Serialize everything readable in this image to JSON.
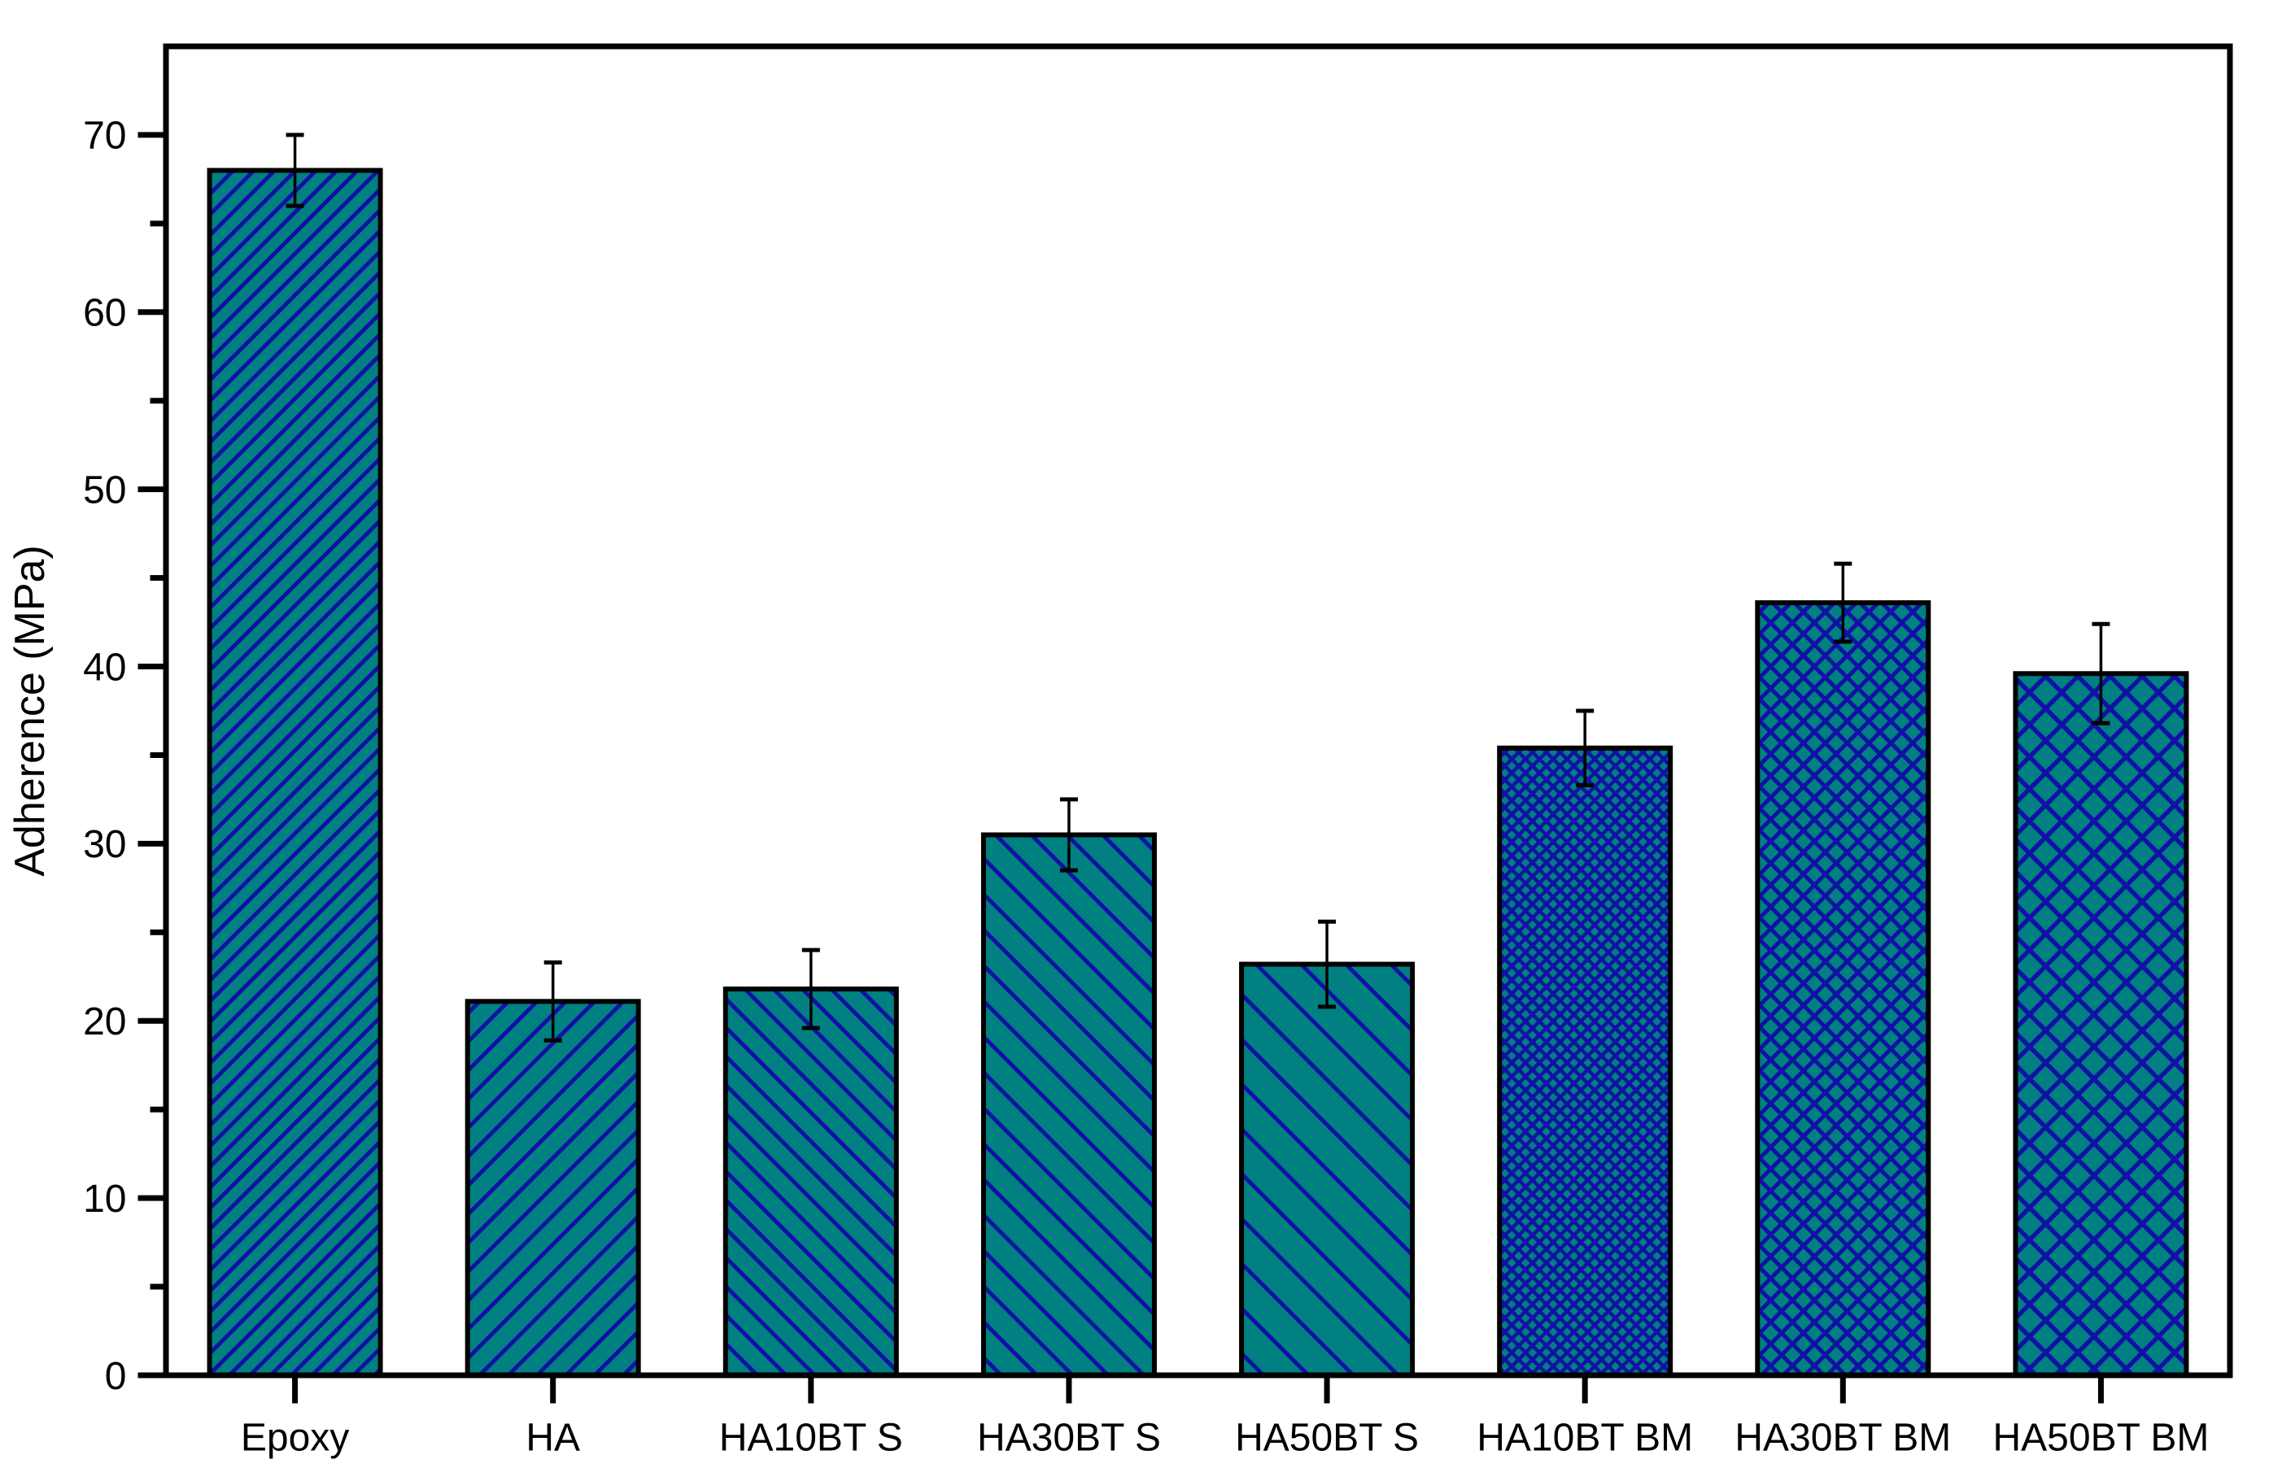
{
  "page": {
    "background": "#ffffff",
    "description": "Bar chart of adherence strength for epoxy and HA/BT coatings"
  },
  "chart_data": {
    "type": "bar",
    "title": "",
    "xlabel": "",
    "ylabel": "Adherence (MPa)",
    "ylim": [
      0,
      75
    ],
    "ytick_step": 10,
    "ytick_minor_step": 5,
    "ytick_labels": [
      "0",
      "10",
      "20",
      "30",
      "40",
      "50",
      "60",
      "70"
    ],
    "grid": false,
    "legend": false,
    "frame": "full-box",
    "categories": [
      "Epoxy",
      "HA",
      "HA10BT S",
      "HA30BT S",
      "HA50BT S",
      "HA10BT BM",
      "HA30BT BM",
      "HA50BT BM"
    ],
    "series": [
      {
        "name": "Adherence",
        "values": [
          68.0,
          21.1,
          21.8,
          30.5,
          23.2,
          35.4,
          43.6,
          39.6
        ],
        "errors": [
          2.0,
          2.2,
          2.2,
          2.0,
          2.4,
          2.1,
          2.2,
          2.8
        ]
      }
    ],
    "bar_patterns": [
      {
        "style": "diagonal-up",
        "pitch": 18,
        "line": 5
      },
      {
        "style": "diagonal-up",
        "pitch": 25,
        "line": 5
      },
      {
        "style": "diagonal-down",
        "pitch": 25,
        "line": 5
      },
      {
        "style": "diagonal-down",
        "pitch": 31,
        "line": 5
      },
      {
        "style": "diagonal-down",
        "pitch": 39,
        "line": 5
      },
      {
        "style": "crosshatch",
        "pitch": 12,
        "line": 4.5
      },
      {
        "style": "crosshatch",
        "pitch": 19,
        "line": 5
      },
      {
        "style": "crosshatch",
        "pitch": 28,
        "line": 5.5
      }
    ],
    "colors": {
      "bar_fill": "#008080",
      "hatch": "#1111a5",
      "bar_outline": "#000000",
      "axis": "#000000",
      "error_bar": "#000000",
      "text": "#000000",
      "background": "#ffffff"
    }
  }
}
